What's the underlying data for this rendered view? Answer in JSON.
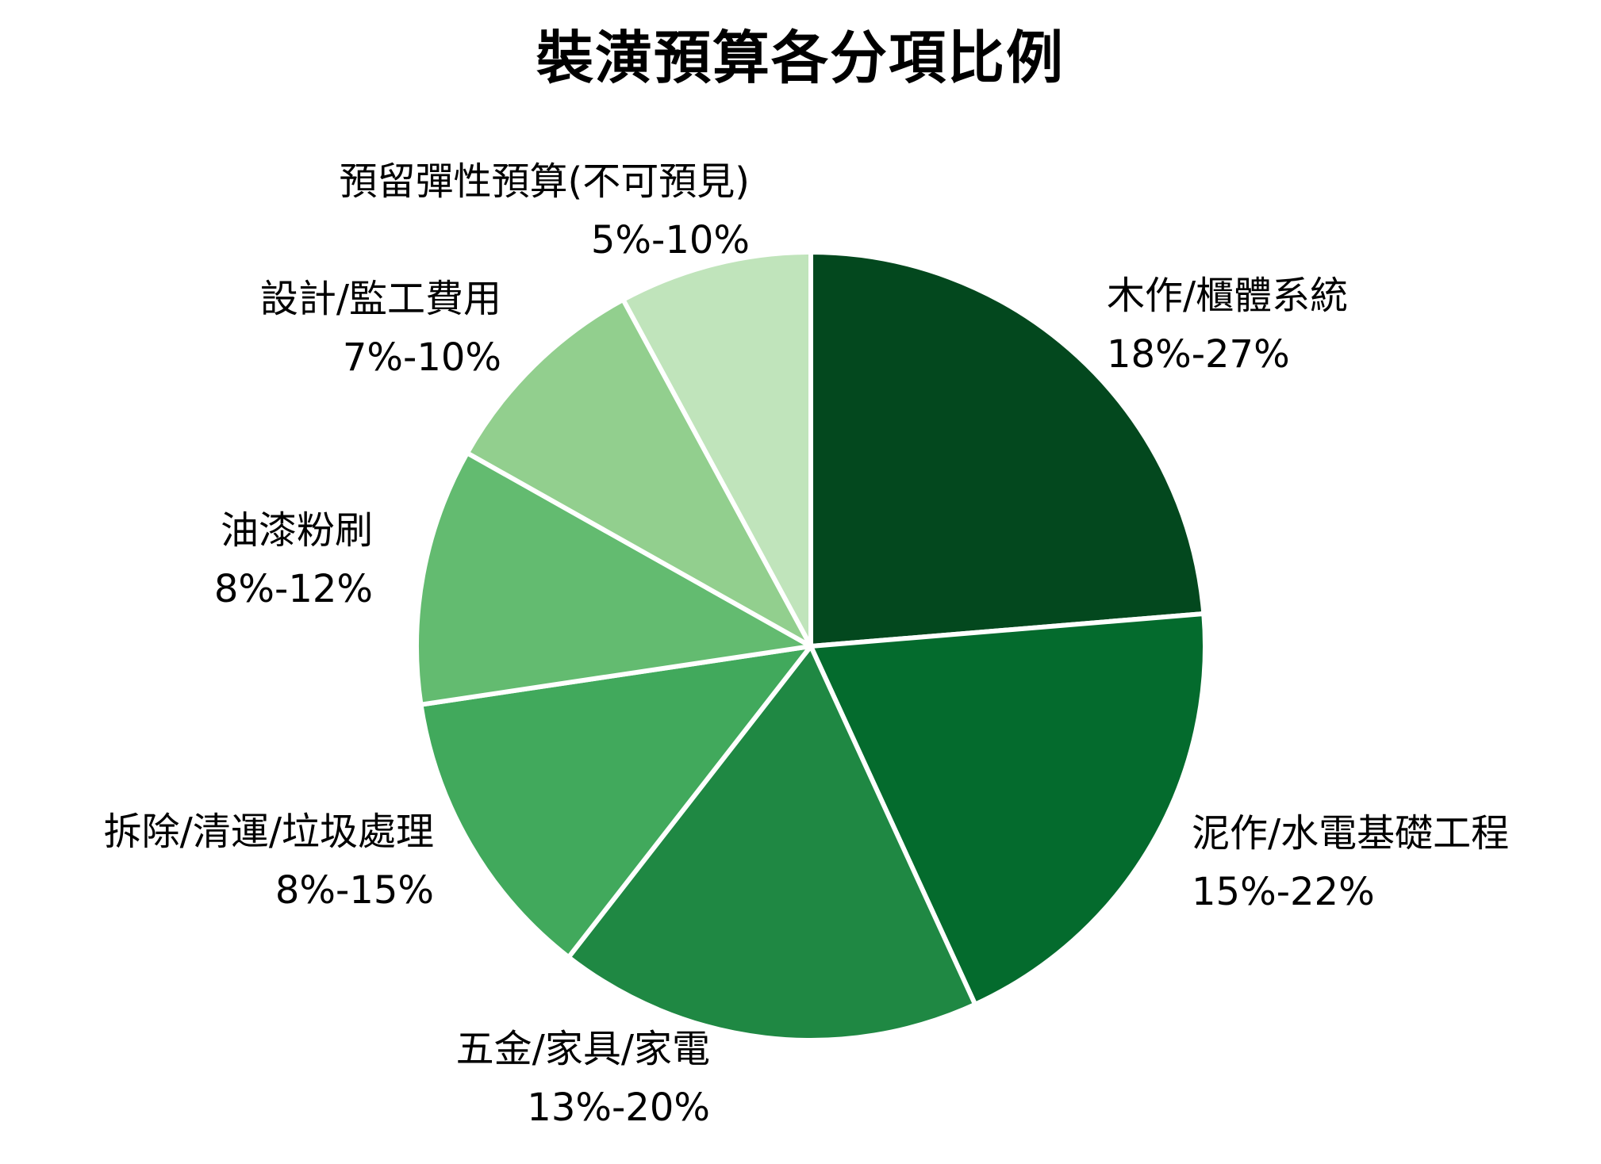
{
  "chart_data": {
    "type": "pie",
    "title": "裝潢預算各分項比例",
    "legend_position": "outside-labels",
    "start_angle_deg": 0,
    "direction": "clockwise",
    "slices": [
      {
        "label": "木作/櫃體系統",
        "range": "18%-27%",
        "min_percent": 18,
        "max_percent": 27,
        "color": "#03481E"
      },
      {
        "label": "泥作/水電基礎工程",
        "range": "15%-22%",
        "min_percent": 15,
        "max_percent": 22,
        "color": "#046B2D"
      },
      {
        "label": "五金/家具/家電",
        "range": "13%-20%",
        "min_percent": 13,
        "max_percent": 20,
        "color": "#1F8843"
      },
      {
        "label": "拆除/清運/垃圾處理",
        "range": "8%-15%",
        "min_percent": 8,
        "max_percent": 15,
        "color": "#41A95C"
      },
      {
        "label": "油漆粉刷",
        "range": "8%-12%",
        "min_percent": 8,
        "max_percent": 12,
        "color": "#63BB70"
      },
      {
        "label": "設計/監工費用",
        "range": "7%-10%",
        "min_percent": 7,
        "max_percent": 10,
        "color": "#92CF8E"
      },
      {
        "label": "預留彈性預算(不可預見)",
        "range": "5%-10%",
        "min_percent": 5,
        "max_percent": 10,
        "color": "#C0E4BB"
      }
    ],
    "slice_border_color": "#FFFFFF"
  }
}
